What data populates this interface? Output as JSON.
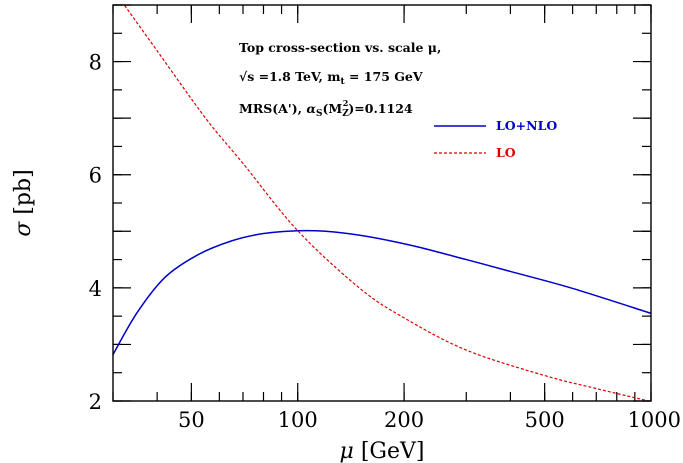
{
  "chart_data": {
    "type": "line",
    "title": "Top cross-section vs. scale μ,",
    "annotations": [
      "Top cross-section vs. scale μ,",
      "√s =1.8 TeV, m_t = 175 GeV",
      "MRS(A'), α_S(M_Z^2)=0.1124"
    ],
    "xlabel": "μ [GeV]",
    "ylabel": "σ [pb]",
    "xscale": "log",
    "xlim": [
      30,
      1000
    ],
    "ylim": [
      2,
      9
    ],
    "xticks": [
      {
        "value": 50,
        "label": "50"
      },
      {
        "value": 100,
        "label": "100"
      },
      {
        "value": 200,
        "label": "200"
      },
      {
        "value": 500,
        "label": "500"
      },
      {
        "value": 1000,
        "label": "1000"
      }
    ],
    "yticks": [
      {
        "value": 2,
        "label": "2"
      },
      {
        "value": 4,
        "label": "4"
      },
      {
        "value": 6,
        "label": "6"
      },
      {
        "value": 8,
        "label": "8"
      }
    ],
    "grid": false,
    "legend_position": "top-right",
    "series": [
      {
        "name": "LO+NLO",
        "color": "#0000cc",
        "style": "solid",
        "x": [
          30,
          35,
          42,
          52,
          65,
          80,
          100,
          120,
          150,
          180,
          220,
          300,
          400,
          600,
          1000
        ],
        "y": [
          2.82,
          3.55,
          4.18,
          4.58,
          4.83,
          4.96,
          5.01,
          5.0,
          4.93,
          4.84,
          4.72,
          4.5,
          4.29,
          3.99,
          3.55
        ]
      },
      {
        "name": "LO",
        "color": "#dd0000",
        "style": "dashed",
        "x": [
          30,
          40,
          55,
          70,
          100,
          150,
          200,
          300,
          500,
          700,
          1000
        ],
        "y": [
          9.28,
          8.19,
          6.99,
          6.2,
          5.01,
          3.99,
          3.47,
          2.9,
          2.45,
          2.22,
          1.99
        ]
      }
    ]
  }
}
